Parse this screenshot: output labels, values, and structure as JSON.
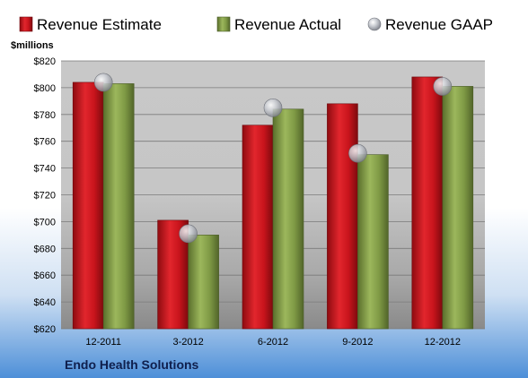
{
  "chart_data": {
    "type": "bar",
    "title": "Endo Health Solutions",
    "ylabel": "$millions",
    "xlabel": "",
    "categories": [
      "12-2011",
      "3-2012",
      "6-2012",
      "9-2012",
      "12-2012"
    ],
    "series": [
      {
        "name": "Revenue Estimate",
        "kind": "bar",
        "color": "#c8141c",
        "values": [
          804,
          701,
          772,
          788,
          808
        ]
      },
      {
        "name": "Revenue Actual",
        "kind": "bar",
        "color": "#7f9a45",
        "values": [
          803,
          690,
          784,
          750,
          801
        ]
      },
      {
        "name": "Revenue GAAP",
        "kind": "marker",
        "color": "#b8bcc4",
        "values": [
          804,
          691,
          785,
          751,
          801
        ]
      }
    ],
    "ylim": [
      620,
      820
    ],
    "yticks": [
      620,
      640,
      660,
      680,
      700,
      720,
      740,
      760,
      780,
      800,
      820
    ],
    "ytick_labels": [
      "$620",
      "$640",
      "$660",
      "$680",
      "$700",
      "$720",
      "$740",
      "$760",
      "$780",
      "$800",
      "$820"
    ],
    "legend": "top",
    "grid": true
  }
}
